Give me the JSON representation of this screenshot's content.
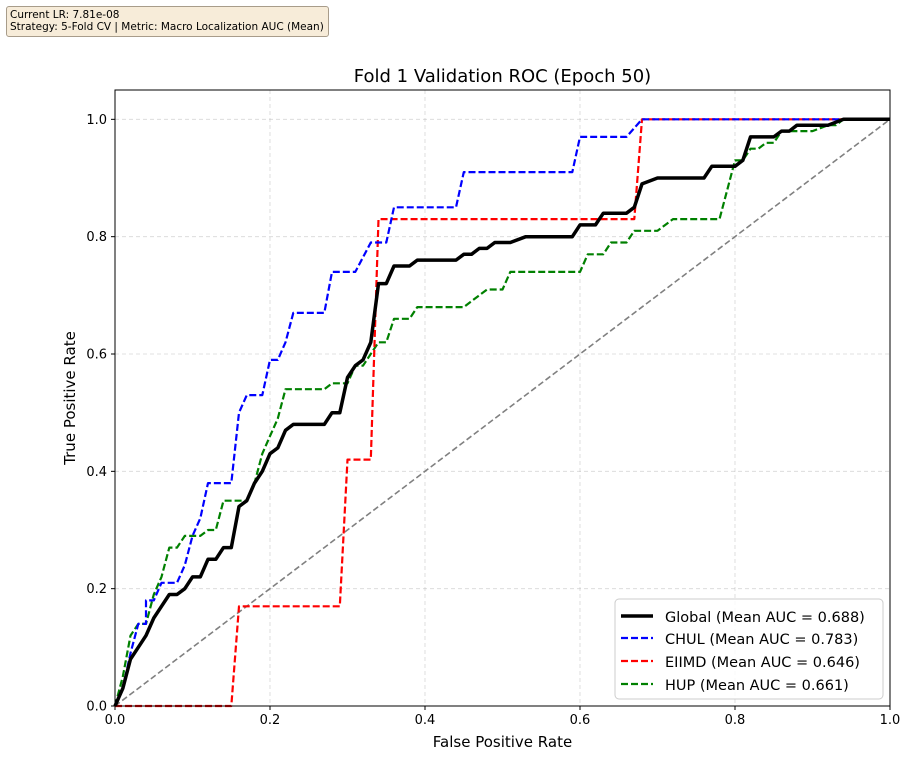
{
  "info_box": {
    "lr_line": "Current LR: 7.81e-08",
    "strategy_line": "Strategy: 5-Fold CV | Metric: Macro Localization AUC (Mean)"
  },
  "chart_data": {
    "type": "line",
    "title": "Fold 1 Validation ROC (Epoch 50)",
    "xlabel": "False Positive Rate",
    "ylabel": "True Positive Rate",
    "xlim": [
      0,
      1.0
    ],
    "ylim": [
      0,
      1.05
    ],
    "grid": true,
    "legend_position": "lower-right",
    "x_ticks": [
      0,
      0.2,
      0.4,
      0.6,
      0.8,
      1.0
    ],
    "x_tick_labels": [
      "0.0",
      "0.2",
      "0.4",
      "0.6",
      "0.8",
      "1.0"
    ],
    "y_ticks": [
      0,
      0.2,
      0.4,
      0.6,
      0.8,
      1.0
    ],
    "y_tick_labels": [
      "0.0",
      "0.2",
      "0.4",
      "0.6",
      "0.8",
      "1.0"
    ],
    "series": [
      {
        "name": "Global",
        "legend": "Global (Mean AUC = 0.688)",
        "color": "#000000",
        "style": "solid",
        "points": [
          [
            0,
            0
          ],
          [
            0.01,
            0.03
          ],
          [
            0.02,
            0.08
          ],
          [
            0.03,
            0.1
          ],
          [
            0.04,
            0.12
          ],
          [
            0.05,
            0.15
          ],
          [
            0.06,
            0.17
          ],
          [
            0.07,
            0.19
          ],
          [
            0.08,
            0.19
          ],
          [
            0.09,
            0.2
          ],
          [
            0.1,
            0.22
          ],
          [
            0.11,
            0.22
          ],
          [
            0.12,
            0.25
          ],
          [
            0.13,
            0.25
          ],
          [
            0.14,
            0.27
          ],
          [
            0.15,
            0.27
          ],
          [
            0.16,
            0.34
          ],
          [
            0.17,
            0.35
          ],
          [
            0.18,
            0.38
          ],
          [
            0.19,
            0.4
          ],
          [
            0.2,
            0.43
          ],
          [
            0.21,
            0.44
          ],
          [
            0.22,
            0.47
          ],
          [
            0.23,
            0.48
          ],
          [
            0.27,
            0.48
          ],
          [
            0.28,
            0.5
          ],
          [
            0.29,
            0.5
          ],
          [
            0.3,
            0.56
          ],
          [
            0.31,
            0.58
          ],
          [
            0.32,
            0.59
          ],
          [
            0.33,
            0.62
          ],
          [
            0.34,
            0.72
          ],
          [
            0.35,
            0.72
          ],
          [
            0.36,
            0.75
          ],
          [
            0.38,
            0.75
          ],
          [
            0.39,
            0.76
          ],
          [
            0.44,
            0.76
          ],
          [
            0.45,
            0.77
          ],
          [
            0.46,
            0.77
          ],
          [
            0.47,
            0.78
          ],
          [
            0.48,
            0.78
          ],
          [
            0.49,
            0.79
          ],
          [
            0.51,
            0.79
          ],
          [
            0.53,
            0.8
          ],
          [
            0.59,
            0.8
          ],
          [
            0.6,
            0.82
          ],
          [
            0.62,
            0.82
          ],
          [
            0.63,
            0.84
          ],
          [
            0.66,
            0.84
          ],
          [
            0.67,
            0.85
          ],
          [
            0.68,
            0.89
          ],
          [
            0.7,
            0.9
          ],
          [
            0.76,
            0.9
          ],
          [
            0.77,
            0.92
          ],
          [
            0.8,
            0.92
          ],
          [
            0.81,
            0.93
          ],
          [
            0.82,
            0.97
          ],
          [
            0.83,
            0.97
          ],
          [
            0.84,
            0.97
          ],
          [
            0.85,
            0.97
          ],
          [
            0.86,
            0.98
          ],
          [
            0.87,
            0.98
          ],
          [
            0.88,
            0.99
          ],
          [
            0.92,
            0.99
          ],
          [
            0.94,
            1.0
          ],
          [
            1.0,
            1.0
          ]
        ]
      },
      {
        "name": "CHUL",
        "legend": "CHUL (Mean AUC = 0.783)",
        "color": "#0000ff",
        "style": "dashed",
        "points": [
          [
            0,
            0
          ],
          [
            0.01,
            0.03
          ],
          [
            0.02,
            0.09
          ],
          [
            0.03,
            0.14
          ],
          [
            0.04,
            0.14
          ],
          [
            0.04,
            0.18
          ],
          [
            0.05,
            0.18
          ],
          [
            0.06,
            0.21
          ],
          [
            0.08,
            0.21
          ],
          [
            0.09,
            0.24
          ],
          [
            0.1,
            0.29
          ],
          [
            0.11,
            0.32
          ],
          [
            0.12,
            0.38
          ],
          [
            0.15,
            0.38
          ],
          [
            0.16,
            0.5
          ],
          [
            0.17,
            0.53
          ],
          [
            0.19,
            0.53
          ],
          [
            0.2,
            0.59
          ],
          [
            0.21,
            0.59
          ],
          [
            0.22,
            0.62
          ],
          [
            0.23,
            0.67
          ],
          [
            0.27,
            0.67
          ],
          [
            0.28,
            0.74
          ],
          [
            0.31,
            0.74
          ],
          [
            0.33,
            0.79
          ],
          [
            0.35,
            0.79
          ],
          [
            0.36,
            0.85
          ],
          [
            0.44,
            0.85
          ],
          [
            0.45,
            0.91
          ],
          [
            0.59,
            0.91
          ],
          [
            0.6,
            0.97
          ],
          [
            0.66,
            0.97
          ],
          [
            0.68,
            1.0
          ],
          [
            1.0,
            1.0
          ]
        ]
      },
      {
        "name": "EIIMD",
        "legend": "EIIMD (Mean AUC = 0.646)",
        "color": "#ff0000",
        "style": "dashed",
        "points": [
          [
            0,
            0
          ],
          [
            0.15,
            0
          ],
          [
            0.16,
            0.17
          ],
          [
            0.29,
            0.17
          ],
          [
            0.3,
            0.42
          ],
          [
            0.33,
            0.42
          ],
          [
            0.34,
            0.83
          ],
          [
            0.66,
            0.83
          ],
          [
            0.67,
            0.83
          ],
          [
            0.68,
            1.0
          ],
          [
            1.0,
            1.0
          ]
        ]
      },
      {
        "name": "HUP",
        "legend": "HUP (Mean AUC = 0.661)",
        "color": "#008000",
        "style": "dashed",
        "points": [
          [
            0,
            0
          ],
          [
            0.01,
            0.05
          ],
          [
            0.02,
            0.12
          ],
          [
            0.03,
            0.14
          ],
          [
            0.04,
            0.14
          ],
          [
            0.05,
            0.19
          ],
          [
            0.06,
            0.22
          ],
          [
            0.07,
            0.27
          ],
          [
            0.08,
            0.27
          ],
          [
            0.09,
            0.29
          ],
          [
            0.11,
            0.29
          ],
          [
            0.12,
            0.3
          ],
          [
            0.13,
            0.3
          ],
          [
            0.14,
            0.35
          ],
          [
            0.17,
            0.35
          ],
          [
            0.18,
            0.38
          ],
          [
            0.19,
            0.43
          ],
          [
            0.2,
            0.46
          ],
          [
            0.21,
            0.49
          ],
          [
            0.22,
            0.54
          ],
          [
            0.27,
            0.54
          ],
          [
            0.28,
            0.55
          ],
          [
            0.3,
            0.55
          ],
          [
            0.31,
            0.58
          ],
          [
            0.32,
            0.58
          ],
          [
            0.34,
            0.62
          ],
          [
            0.35,
            0.62
          ],
          [
            0.36,
            0.66
          ],
          [
            0.38,
            0.66
          ],
          [
            0.39,
            0.68
          ],
          [
            0.45,
            0.68
          ],
          [
            0.46,
            0.69
          ],
          [
            0.47,
            0.7
          ],
          [
            0.48,
            0.71
          ],
          [
            0.5,
            0.71
          ],
          [
            0.51,
            0.74
          ],
          [
            0.58,
            0.74
          ],
          [
            0.59,
            0.74
          ],
          [
            0.6,
            0.74
          ],
          [
            0.61,
            0.77
          ],
          [
            0.63,
            0.77
          ],
          [
            0.64,
            0.79
          ],
          [
            0.66,
            0.79
          ],
          [
            0.67,
            0.81
          ],
          [
            0.7,
            0.81
          ],
          [
            0.72,
            0.83
          ],
          [
            0.78,
            0.83
          ],
          [
            0.79,
            0.88
          ],
          [
            0.8,
            0.93
          ],
          [
            0.81,
            0.93
          ],
          [
            0.82,
            0.95
          ],
          [
            0.83,
            0.95
          ],
          [
            0.84,
            0.96
          ],
          [
            0.85,
            0.96
          ],
          [
            0.86,
            0.98
          ],
          [
            0.9,
            0.98
          ],
          [
            0.92,
            0.99
          ],
          [
            0.93,
            0.99
          ],
          [
            0.94,
            1.0
          ],
          [
            1.0,
            1.0
          ]
        ]
      },
      {
        "name": "Chance",
        "legend": "",
        "color": "#808080",
        "style": "dashed-diagonal",
        "points": [
          [
            0,
            0
          ],
          [
            1.0,
            1.0
          ]
        ]
      }
    ]
  }
}
